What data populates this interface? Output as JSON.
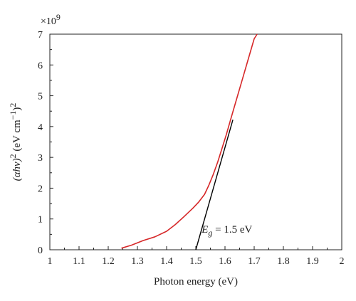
{
  "chart_data": {
    "type": "line",
    "xlabel": "Photon energy (eV)",
    "ylabel_main": "(αhν)",
    "ylabel_sup1": "2",
    "ylabel_unit": " (eV cm",
    "ylabel_sup2": "−1",
    "ylabel_close": ")",
    "ylabel_sup3": "2",
    "y_multiplier_base": "×10",
    "y_multiplier_exp": "9",
    "xlim": [
      1.0,
      2.0
    ],
    "ylim": [
      0,
      7
    ],
    "x_ticks": [
      "1",
      "1.1",
      "1.2",
      "1.3",
      "1.4",
      "1.5",
      "1.6",
      "1.7",
      "1.8",
      "1.9",
      "2"
    ],
    "y_ticks": [
      "0",
      "1",
      "2",
      "3",
      "4",
      "5",
      "6",
      "7"
    ],
    "series": [
      {
        "color": "#d62728",
        "x": [
          1.245,
          1.28,
          1.32,
          1.36,
          1.4,
          1.43,
          1.46,
          1.49,
          1.51,
          1.53,
          1.545,
          1.56,
          1.575,
          1.59,
          1.605,
          1.62,
          1.64,
          1.66,
          1.68,
          1.7,
          1.71
        ],
        "y": [
          0.05,
          0.15,
          0.3,
          0.42,
          0.6,
          0.82,
          1.08,
          1.35,
          1.55,
          1.8,
          2.1,
          2.45,
          2.85,
          3.3,
          3.75,
          4.25,
          4.9,
          5.55,
          6.2,
          6.85,
          7.0
        ]
      }
    ],
    "tangent": {
      "color": "#000000",
      "x": [
        1.5,
        1.627
      ],
      "y": [
        0,
        4.22
      ]
    },
    "annotation": {
      "prefix": "E",
      "subscript": "g",
      "suffix": " = 1.5 eV",
      "x": 1.52,
      "y": 0.55
    }
  }
}
